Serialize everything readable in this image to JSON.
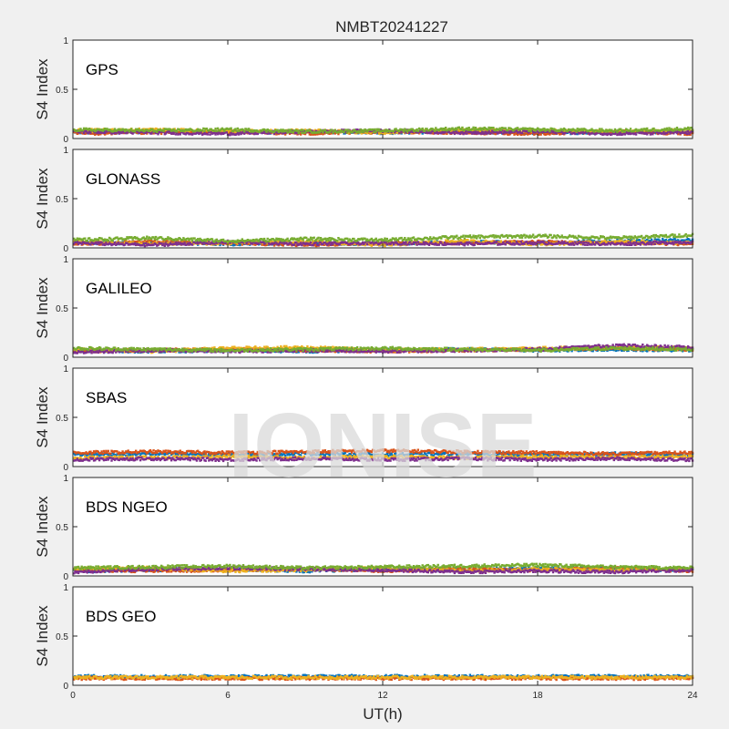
{
  "figure_title": "NMBT20241227",
  "watermark": "IONISE",
  "chart_data": {
    "type": "scatter",
    "title": "NMBT20241227",
    "xlabel": "UT(h)",
    "ylabel": "S4 Index",
    "xlim": [
      0,
      24
    ],
    "ylim": [
      0,
      1
    ],
    "xticks": [
      0,
      6,
      12,
      18,
      24
    ],
    "yticks": [
      0,
      0.5,
      1
    ],
    "ytick_labels": [
      "0",
      "0.5",
      "1"
    ],
    "colors": [
      "#0072BD",
      "#D95319",
      "#EDB120",
      "#7E2F8E",
      "#77AC30",
      "#4DBEEE",
      "#A2142F"
    ],
    "panels": [
      {
        "label": "GPS",
        "series": [
          {
            "x": [
              0,
              3,
              6,
              9,
              12,
              15,
              18,
              21,
              24
            ],
            "y": [
              0.06,
              0.07,
              0.06,
              0.07,
              0.06,
              0.07,
              0.06,
              0.06,
              0.07
            ]
          },
          {
            "x": [
              0,
              3,
              6,
              9,
              12,
              15,
              18,
              21,
              24
            ],
            "y": [
              0.05,
              0.06,
              0.07,
              0.05,
              0.07,
              0.06,
              0.05,
              0.07,
              0.05
            ]
          },
          {
            "x": [
              0,
              3,
              6,
              9,
              12,
              15,
              18,
              21,
              24
            ],
            "y": [
              0.08,
              0.09,
              0.07,
              0.08,
              0.06,
              0.09,
              0.08,
              0.07,
              0.08
            ]
          },
          {
            "x": [
              0,
              3,
              6,
              9,
              12,
              15,
              18,
              21,
              24
            ],
            "y": [
              0.07,
              0.06,
              0.05,
              0.07,
              0.08,
              0.06,
              0.07,
              0.05,
              0.06
            ]
          },
          {
            "x": [
              0,
              3,
              6,
              9,
              12,
              15,
              18,
              21,
              24
            ],
            "y": [
              0.09,
              0.08,
              0.09,
              0.07,
              0.08,
              0.1,
              0.09,
              0.08,
              0.1
            ]
          }
        ]
      },
      {
        "label": "GLONASS",
        "series": [
          {
            "x": [
              0,
              3,
              6,
              9,
              12,
              15,
              18,
              21,
              24
            ],
            "y": [
              0.05,
              0.05,
              0.04,
              0.05,
              0.04,
              0.06,
              0.05,
              0.07,
              0.08
            ]
          },
          {
            "x": [
              0,
              3,
              6,
              9,
              12,
              15,
              18,
              21,
              24
            ],
            "y": [
              0.04,
              0.06,
              0.05,
              0.03,
              0.05,
              0.05,
              0.06,
              0.05,
              0.04
            ]
          },
          {
            "x": [
              0,
              3,
              6,
              9,
              12,
              15,
              18,
              21,
              24
            ],
            "y": [
              0.06,
              0.04,
              0.05,
              0.06,
              0.03,
              0.07,
              0.04,
              0.06,
              0.05
            ]
          },
          {
            "x": [
              0,
              3,
              6,
              9,
              12,
              15,
              18,
              21,
              24
            ],
            "y": [
              0.05,
              0.03,
              0.06,
              0.04,
              0.05,
              0.04,
              0.05,
              0.04,
              0.06
            ]
          },
          {
            "x": [
              0,
              3,
              6,
              9,
              12,
              15,
              18,
              21,
              24
            ],
            "y": [
              0.08,
              0.1,
              0.07,
              0.09,
              0.08,
              0.11,
              0.12,
              0.1,
              0.13
            ]
          }
        ]
      },
      {
        "label": "GALILEO",
        "series": [
          {
            "x": [
              0,
              3,
              6,
              9,
              12,
              15,
              18,
              21,
              24
            ],
            "y": [
              0.07,
              0.06,
              0.07,
              0.06,
              0.07,
              0.08,
              0.07,
              0.08,
              0.07
            ]
          },
          {
            "x": [
              0,
              3,
              6,
              9,
              12,
              15,
              18,
              21,
              24
            ],
            "y": [
              0.06,
              0.07,
              0.08,
              0.07,
              0.06,
              0.07,
              0.08,
              0.09,
              0.08
            ]
          },
          {
            "x": [
              0,
              3,
              6,
              9,
              12,
              15,
              18,
              21,
              24
            ],
            "y": [
              0.08,
              0.06,
              0.09,
              0.1,
              0.07,
              0.08,
              0.09,
              0.1,
              0.09
            ]
          },
          {
            "x": [
              0,
              3,
              6,
              9,
              12,
              15,
              18,
              21,
              24
            ],
            "y": [
              0.05,
              0.07,
              0.06,
              0.07,
              0.06,
              0.07,
              0.08,
              0.12,
              0.1
            ]
          },
          {
            "x": [
              0,
              3,
              6,
              9,
              12,
              15,
              18,
              21,
              24
            ],
            "y": [
              0.09,
              0.08,
              0.07,
              0.08,
              0.09,
              0.08,
              0.07,
              0.09,
              0.08
            ]
          }
        ]
      },
      {
        "label": "SBAS",
        "series": [
          {
            "x": [
              0,
              3,
              6,
              9,
              12,
              15,
              18,
              21,
              24
            ],
            "y": [
              0.12,
              0.13,
              0.12,
              0.13,
              0.12,
              0.13,
              0.12,
              0.13,
              0.12
            ]
          },
          {
            "x": [
              0,
              3,
              6,
              9,
              12,
              15,
              18,
              21,
              24
            ],
            "y": [
              0.14,
              0.15,
              0.14,
              0.15,
              0.16,
              0.15,
              0.14,
              0.13,
              0.14
            ]
          },
          {
            "x": [
              0,
              3,
              6,
              9,
              12,
              15,
              18,
              21,
              24
            ],
            "y": [
              0.09,
              0.09,
              0.1,
              0.09,
              0.1,
              0.09,
              0.1,
              0.09,
              0.1
            ]
          },
          {
            "x": [
              0,
              3,
              6,
              9,
              12,
              15,
              18,
              21,
              24
            ],
            "y": [
              0.07,
              0.08,
              0.07,
              0.08,
              0.07,
              0.08,
              0.07,
              0.08,
              0.07
            ]
          }
        ]
      },
      {
        "label": "BDS NGEO",
        "series": [
          {
            "x": [
              0,
              3,
              6,
              9,
              12,
              15,
              18,
              21,
              24
            ],
            "y": [
              0.05,
              0.06,
              0.07,
              0.05,
              0.07,
              0.06,
              0.08,
              0.07,
              0.06
            ]
          },
          {
            "x": [
              0,
              3,
              6,
              9,
              12,
              15,
              18,
              21,
              24
            ],
            "y": [
              0.06,
              0.05,
              0.06,
              0.07,
              0.05,
              0.07,
              0.06,
              0.08,
              0.05
            ]
          },
          {
            "x": [
              0,
              3,
              6,
              9,
              12,
              15,
              18,
              21,
              24
            ],
            "y": [
              0.07,
              0.08,
              0.05,
              0.06,
              0.08,
              0.05,
              0.07,
              0.06,
              0.07
            ]
          },
          {
            "x": [
              0,
              3,
              6,
              9,
              12,
              15,
              18,
              21,
              24
            ],
            "y": [
              0.04,
              0.07,
              0.08,
              0.07,
              0.06,
              0.04,
              0.05,
              0.04,
              0.06
            ]
          },
          {
            "x": [
              0,
              3,
              6,
              9,
              12,
              15,
              18,
              21,
              24
            ],
            "y": [
              0.08,
              0.09,
              0.1,
              0.08,
              0.09,
              0.1,
              0.11,
              0.09,
              0.08
            ]
          }
        ]
      },
      {
        "label": "BDS GEO",
        "series": [
          {
            "x": [
              0,
              3,
              6,
              9,
              12,
              15,
              18,
              21,
              24
            ],
            "y": [
              0.09,
              0.09,
              0.09,
              0.09,
              0.09,
              0.09,
              0.09,
              0.09,
              0.09
            ]
          },
          {
            "x": [
              0,
              3,
              6,
              9,
              12,
              15,
              18,
              21,
              24
            ],
            "y": [
              0.07,
              0.07,
              0.07,
              0.07,
              0.07,
              0.07,
              0.07,
              0.07,
              0.07
            ]
          },
          {
            "x": [
              0,
              3,
              6,
              9,
              12,
              15,
              18,
              21,
              24
            ],
            "y": [
              0.08,
              0.08,
              0.08,
              0.08,
              0.08,
              0.08,
              0.08,
              0.08,
              0.08
            ]
          }
        ]
      }
    ]
  }
}
